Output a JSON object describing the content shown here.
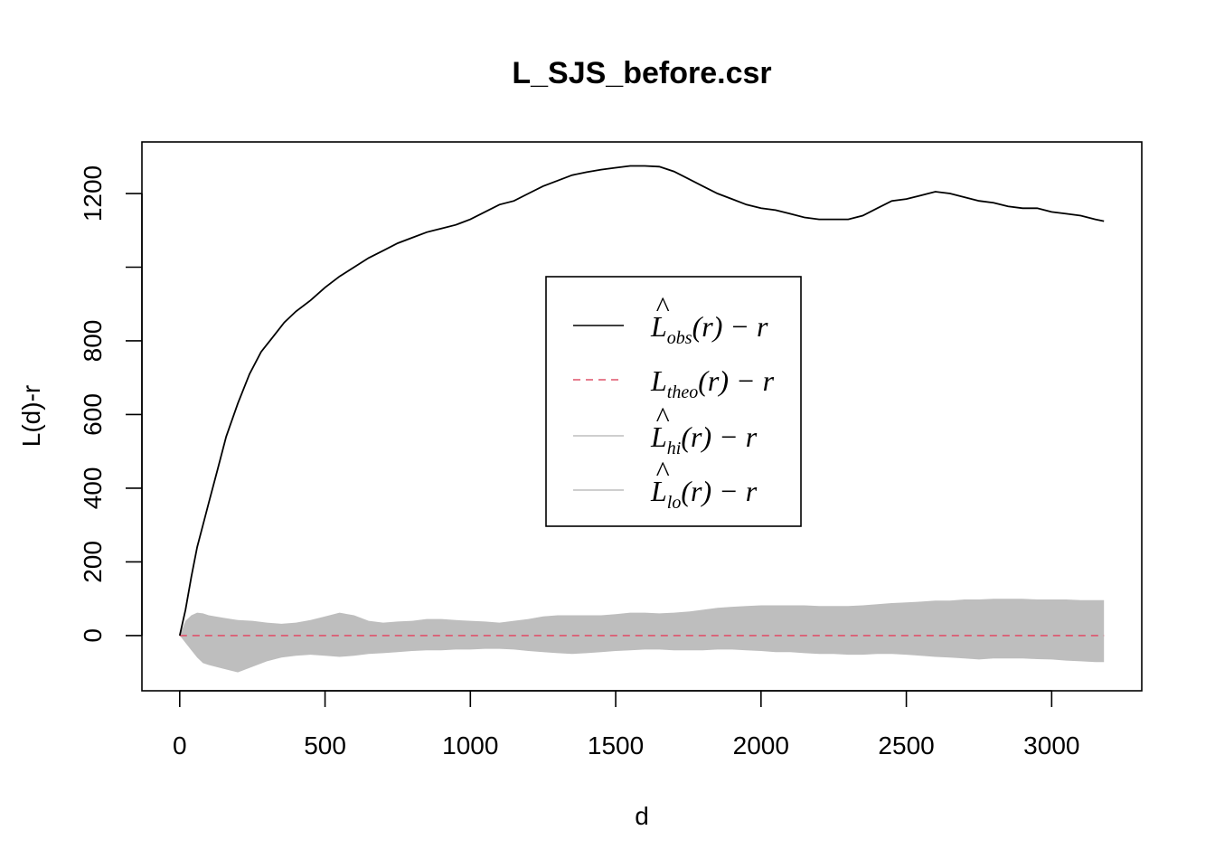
{
  "chart_data": {
    "type": "line",
    "title": "L_SJS_before.csr",
    "xlabel": "d",
    "ylabel": "L(d)-r",
    "xlim": [
      -130,
      3310
    ],
    "ylim": [
      -150,
      1340
    ],
    "x_ticks": [
      0,
      500,
      1000,
      1500,
      2000,
      2500,
      3000
    ],
    "x_tick_labels": [
      "0",
      "500",
      "1000",
      "1500",
      "2000",
      "2500",
      "3000"
    ],
    "y_ticks": [
      0,
      200,
      400,
      600,
      800,
      1000,
      1200
    ],
    "y_tick_labels": [
      "0",
      "200",
      "400",
      "600",
      "800",
      "",
      "1200"
    ],
    "legend_position": "center",
    "grid": false,
    "colors": {
      "obs": "#000000",
      "theo": "#DF536B",
      "envelope": "#BEBEBE"
    },
    "legend": [
      {
        "base": "L",
        "hat": true,
        "sub": "obs",
        "tail": "(r) − r",
        "style": "solid",
        "color": "#000000"
      },
      {
        "base": "L",
        "hat": false,
        "sub": "theo",
        "tail": "(r) − r",
        "style": "dashed",
        "color": "#DF536B"
      },
      {
        "base": "L",
        "hat": true,
        "sub": "hi",
        "tail": "(r) − r",
        "style": "solid",
        "color": "#BEBEBE"
      },
      {
        "base": "L",
        "hat": true,
        "sub": "lo",
        "tail": "(r) − r",
        "style": "solid",
        "color": "#BEBEBE"
      }
    ],
    "series": [
      {
        "key": "obs",
        "x": [
          0,
          20,
          40,
          60,
          80,
          100,
          130,
          160,
          200,
          240,
          280,
          320,
          360,
          400,
          450,
          500,
          550,
          600,
          650,
          700,
          750,
          800,
          850,
          900,
          950,
          1000,
          1050,
          1100,
          1150,
          1200,
          1250,
          1300,
          1350,
          1400,
          1450,
          1500,
          1550,
          1600,
          1650,
          1700,
          1750,
          1800,
          1850,
          1900,
          1950,
          2000,
          2050,
          2100,
          2150,
          2200,
          2250,
          2300,
          2350,
          2400,
          2450,
          2500,
          2550,
          2600,
          2650,
          2700,
          2750,
          2800,
          2850,
          2900,
          2950,
          3000,
          3050,
          3100,
          3150,
          3180
        ],
        "y": [
          0,
          70,
          160,
          240,
          300,
          360,
          450,
          540,
          630,
          710,
          770,
          810,
          850,
          880,
          910,
          945,
          975,
          1000,
          1025,
          1045,
          1065,
          1080,
          1095,
          1105,
          1115,
          1130,
          1150,
          1170,
          1180,
          1200,
          1220,
          1235,
          1250,
          1258,
          1265,
          1270,
          1275,
          1275,
          1273,
          1260,
          1240,
          1220,
          1200,
          1185,
          1170,
          1160,
          1155,
          1145,
          1135,
          1130,
          1130,
          1130,
          1140,
          1160,
          1180,
          1185,
          1195,
          1205,
          1200,
          1190,
          1180,
          1175,
          1165,
          1160,
          1160,
          1150,
          1145,
          1140,
          1130,
          1125
        ]
      },
      {
        "key": "theo",
        "x": [
          0,
          3180
        ],
        "y": [
          0,
          0
        ]
      },
      {
        "key": "hi",
        "x": [
          0,
          20,
          40,
          60,
          80,
          100,
          150,
          200,
          250,
          300,
          350,
          400,
          450,
          500,
          550,
          600,
          650,
          700,
          750,
          800,
          850,
          900,
          950,
          1000,
          1050,
          1100,
          1150,
          1200,
          1250,
          1300,
          1350,
          1400,
          1450,
          1500,
          1550,
          1600,
          1650,
          1700,
          1750,
          1800,
          1850,
          1900,
          1950,
          2000,
          2050,
          2100,
          2150,
          2200,
          2250,
          2300,
          2350,
          2400,
          2450,
          2500,
          2550,
          2600,
          2650,
          2700,
          2750,
          2800,
          2850,
          2900,
          2950,
          3000,
          3050,
          3100,
          3150,
          3180
        ],
        "y": [
          0,
          40,
          55,
          62,
          60,
          55,
          48,
          42,
          40,
          35,
          32,
          35,
          42,
          52,
          62,
          55,
          40,
          35,
          38,
          40,
          45,
          45,
          42,
          40,
          38,
          35,
          40,
          45,
          52,
          55,
          55,
          55,
          55,
          58,
          62,
          62,
          60,
          62,
          65,
          70,
          75,
          78,
          80,
          82,
          82,
          82,
          82,
          80,
          80,
          80,
          82,
          85,
          88,
          90,
          92,
          95,
          95,
          98,
          98,
          100,
          100,
          100,
          98,
          98,
          98,
          96,
          96,
          96
        ]
      },
      {
        "key": "lo",
        "x": [
          0,
          20,
          40,
          60,
          80,
          100,
          150,
          200,
          250,
          300,
          350,
          400,
          450,
          500,
          550,
          600,
          650,
          700,
          750,
          800,
          850,
          900,
          950,
          1000,
          1050,
          1100,
          1150,
          1200,
          1250,
          1300,
          1350,
          1400,
          1450,
          1500,
          1550,
          1600,
          1650,
          1700,
          1750,
          1800,
          1850,
          1900,
          1950,
          2000,
          2050,
          2100,
          2150,
          2200,
          2250,
          2300,
          2350,
          2400,
          2450,
          2500,
          2550,
          2600,
          2650,
          2700,
          2750,
          2800,
          2850,
          2900,
          2950,
          3000,
          3050,
          3100,
          3150,
          3180
        ],
        "y": [
          0,
          -20,
          -40,
          -60,
          -75,
          -80,
          -90,
          -100,
          -85,
          -70,
          -60,
          -55,
          -52,
          -55,
          -58,
          -55,
          -50,
          -48,
          -45,
          -42,
          -40,
          -40,
          -38,
          -38,
          -36,
          -36,
          -38,
          -42,
          -45,
          -48,
          -50,
          -48,
          -45,
          -42,
          -40,
          -38,
          -38,
          -40,
          -40,
          -40,
          -38,
          -38,
          -40,
          -42,
          -45,
          -45,
          -48,
          -50,
          -50,
          -52,
          -52,
          -50,
          -50,
          -52,
          -55,
          -58,
          -60,
          -62,
          -65,
          -62,
          -62,
          -62,
          -64,
          -65,
          -68,
          -70,
          -72,
          -72
        ]
      }
    ]
  }
}
